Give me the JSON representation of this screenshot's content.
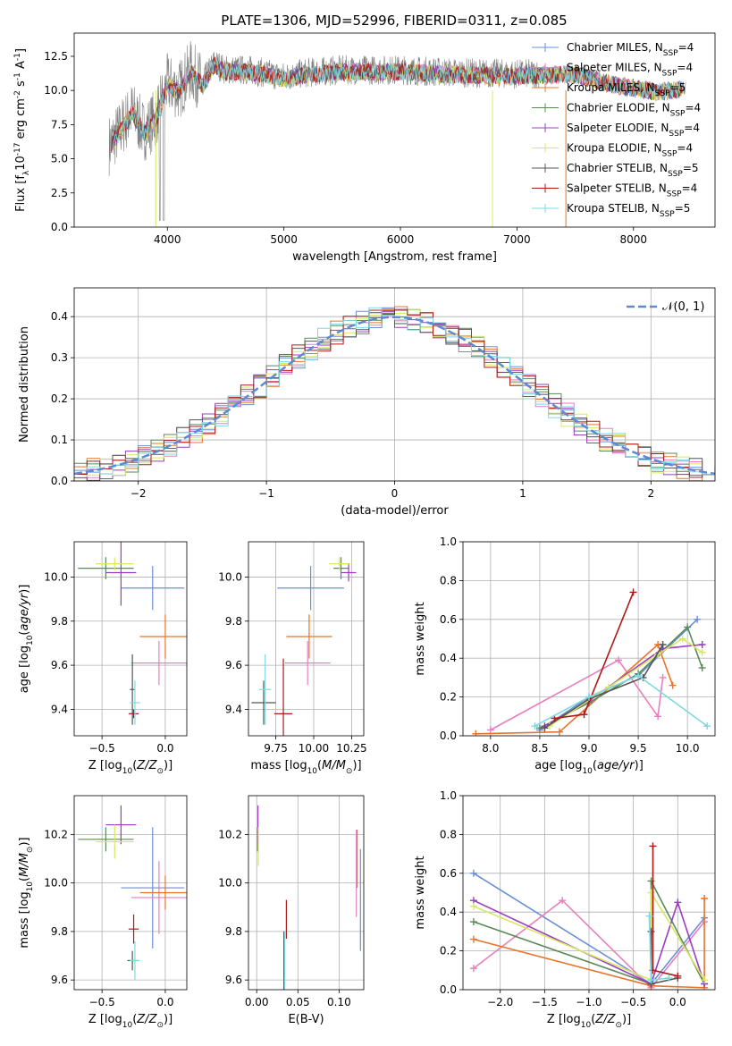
{
  "figure": {
    "title": "PLATE=1306, MJD=52996, FIBERID=0311, z=0.085"
  },
  "legend": {
    "fit_labels": [
      "Chabrier MILES, N$_{SSP}$=4",
      "Salpeter MILES, N$_{SSP}$=4",
      "Kroupa MILES, N$_{SSP}$=5",
      "Chabrier ELODIE, N$_{SSP}$=4",
      "Salpeter ELODIE, N$_{SSP}$=4",
      "Kroupa ELODIE, N$_{SSP}$=4",
      "Chabrier STELIB, N$_{SSP}$=5",
      "Salpeter STELIB, N$_{SSP}$=4",
      "Kroupa STELIB, N$_{SSP}$=5"
    ],
    "normal_label": "𝒩(0, 1)"
  },
  "colors": {
    "chabrier_miles": "#6a8fd8",
    "salpeter_miles": "#e87fbe",
    "kroupa_miles": "#e8742a",
    "chabrier_elodie": "#5a8a5a",
    "salpeter_elodie": "#9b3cc4",
    "kroupa_elodie": "#d9e860",
    "chabrier_stelib": "#555555",
    "salpeter_stelib": "#b01818",
    "kroupa_stelib": "#7fd8e0",
    "data": "#808080",
    "normal_curve": "#5b8bd6"
  },
  "chart_data": [
    {
      "id": "spectrum",
      "type": "line",
      "xlabel": "wavelength [Angstrom, rest frame]",
      "ylabel": "Flux [f$_\\lambda$10$^{-17}$ erg cm$^{-2}$ s$^{-1}$ A$^{-1}$]",
      "xlim": [
        3200,
        8700
      ],
      "ylim": [
        0,
        14.2
      ],
      "xticks": [
        4000,
        5000,
        6000,
        7000,
        8000
      ],
      "yticks": [
        0.0,
        2.5,
        5.0,
        7.5,
        10.0,
        12.5
      ],
      "ytick_labels": [
        "0.0",
        "2.5",
        "5.0",
        "7.5",
        "10.0",
        "12.5"
      ],
      "series_x": [
        3500,
        3600,
        3700,
        3800,
        3900,
        4000,
        4100,
        4200,
        4300,
        4400,
        4500,
        4700,
        5000,
        5200,
        5500,
        6000,
        6500,
        7000,
        7500,
        7800,
        8000,
        8200,
        8400
      ],
      "series_y": [
        6.0,
        7.2,
        8.5,
        7.0,
        8.0,
        10.5,
        10.0,
        11.5,
        10.5,
        12.0,
        11.5,
        11.5,
        11.0,
        11.3,
        11.5,
        11.5,
        11.3,
        11.2,
        11.3,
        10.6,
        10.3,
        10.0,
        10.2
      ]
    },
    {
      "id": "residuals",
      "type": "line",
      "xlabel": "(data-model)/error",
      "ylabel": "Normed distribution",
      "xlim": [
        -2.5,
        2.5
      ],
      "ylim": [
        0,
        0.47
      ],
      "xticks": [
        -2,
        -1,
        0,
        1,
        2
      ],
      "xtick_labels": [
        "−2",
        "−1",
        "0",
        "1",
        "2"
      ],
      "yticks": [
        0.0,
        0.1,
        0.2,
        0.3,
        0.4
      ],
      "ytick_labels": [
        "0.0",
        "0.1",
        "0.2",
        "0.3",
        "0.4"
      ],
      "grid": true,
      "normal_mean": 0,
      "normal_sigma": 1
    },
    {
      "id": "age_vs_Z",
      "type": "scatter",
      "xlabel": "Z [log$_{10}$($Z/Z_\\odot$)]",
      "ylabel": "age  [log$_{10}$($age/yr$)]",
      "xlim": [
        -0.72,
        0.17
      ],
      "ylim": [
        9.28,
        10.16
      ],
      "xticks": [
        -0.5,
        0.0
      ],
      "xtick_labels": [
        "−0.5",
        "0.0"
      ],
      "yticks": [
        9.4,
        9.6,
        9.8,
        10.0
      ],
      "ytick_labels": [
        "9.4",
        "9.6",
        "9.8",
        "10.0"
      ],
      "grid": true,
      "points": [
        {
          "x": -0.1,
          "y": 9.95,
          "xerr": 0.25,
          "yerr": 0.1
        },
        {
          "x": -0.05,
          "y": 9.61,
          "xerr": 0.22,
          "yerr": 0.1
        },
        {
          "x": 0.0,
          "y": 9.73,
          "xerr": 0.2,
          "yerr": 0.1
        },
        {
          "x": -0.47,
          "y": 10.04,
          "xerr": 0.22,
          "yerr": 0.05
        },
        {
          "x": -0.35,
          "y": 10.02,
          "xerr": 0.12,
          "yerr": 0.15
        },
        {
          "x": -0.4,
          "y": 10.06,
          "xerr": 0.15,
          "yerr": 0.03
        },
        {
          "x": -0.26,
          "y": 9.49,
          "xerr": 0.02,
          "yerr": 0.16
        },
        {
          "x": -0.25,
          "y": 9.38,
          "xerr": 0.04,
          "yerr": 0.02
        },
        {
          "x": -0.24,
          "y": 9.43,
          "xerr": 0.04,
          "yerr": 0.1
        }
      ]
    },
    {
      "id": "age_vs_mass",
      "type": "scatter",
      "xlabel": "mass [log$_{10}$($M/M_\\odot$)]",
      "ylabel": "",
      "xlim": [
        9.57,
        10.33
      ],
      "ylim": [
        9.28,
        10.16
      ],
      "xticks": [
        9.75,
        10.0,
        10.25
      ],
      "xtick_labels": [
        "9.75",
        "10.00",
        "10.25"
      ],
      "yticks": [
        9.4,
        9.6,
        9.8,
        10.0
      ],
      "ytick_labels": [
        "9.4",
        "9.6",
        "9.8",
        "10.0"
      ],
      "grid": true,
      "points": [
        {
          "x": 9.98,
          "y": 9.95,
          "xerr": 0.22,
          "yerr": 0.1
        },
        {
          "x": 9.96,
          "y": 9.61,
          "xerr": 0.15,
          "yerr": 0.1
        },
        {
          "x": 9.97,
          "y": 9.73,
          "xerr": 0.15,
          "yerr": 0.1
        },
        {
          "x": 10.18,
          "y": 10.04,
          "xerr": 0.05,
          "yerr": 0.05
        },
        {
          "x": 10.23,
          "y": 10.02,
          "xerr": 0.05,
          "yerr": 0.04
        },
        {
          "x": 10.17,
          "y": 10.06,
          "xerr": 0.07,
          "yerr": 0.03
        },
        {
          "x": 9.67,
          "y": 9.43,
          "xerr": 0.08,
          "yerr": 0.1
        },
        {
          "x": 9.8,
          "y": 9.38,
          "xerr": 0.06,
          "yerr": 0.25
        },
        {
          "x": 9.68,
          "y": 9.49,
          "xerr": 0.04,
          "yerr": 0.16
        }
      ]
    },
    {
      "id": "weight_vs_age",
      "type": "line",
      "xlabel": "age  [log$_{10}$($age/yr$)]",
      "ylabel": "mass weight",
      "xlim": [
        7.72,
        10.28
      ],
      "ylim": [
        0,
        1.0
      ],
      "xticks": [
        8.0,
        8.5,
        9.0,
        9.5,
        10.0
      ],
      "xtick_labels": [
        "8.0",
        "8.5",
        "9.0",
        "9.5",
        "10.0"
      ],
      "yticks": [
        0.0,
        0.2,
        0.4,
        0.6,
        0.8,
        1.0
      ],
      "ytick_labels": [
        "0.0",
        "0.2",
        "0.4",
        "0.6",
        "0.8",
        "1.0"
      ],
      "grid": true,
      "series": [
        {
          "x": [
            8.5,
            9.0,
            9.5,
            10.1
          ],
          "y": [
            0.03,
            0.2,
            0.31,
            0.6
          ]
        },
        {
          "x": [
            8.0,
            9.3,
            9.7,
            9.75
          ],
          "y": [
            0.03,
            0.39,
            0.1,
            0.3
          ]
        },
        {
          "x": [
            7.85,
            8.7,
            9.7,
            9.85
          ],
          "y": [
            0.01,
            0.02,
            0.47,
            0.26
          ]
        },
        {
          "x": [
            8.5,
            9.0,
            9.5,
            10.0,
            10.15
          ],
          "y": [
            0.04,
            0.17,
            0.32,
            0.56,
            0.35
          ]
        },
        {
          "x": [
            8.55,
            9.0,
            9.75,
            10.15
          ],
          "y": [
            0.05,
            0.18,
            0.45,
            0.47
          ]
        },
        {
          "x": [
            8.6,
            9.2,
            9.7,
            9.95,
            10.15
          ],
          "y": [
            0.05,
            0.25,
            0.42,
            0.5,
            0.43
          ]
        },
        {
          "x": [
            8.55,
            9.0,
            9.55,
            9.75
          ],
          "y": [
            0.04,
            0.19,
            0.3,
            0.47
          ]
        },
        {
          "x": [
            8.65,
            8.95,
            9.45
          ],
          "y": [
            0.09,
            0.11,
            0.74
          ]
        },
        {
          "x": [
            8.45,
            9.0,
            9.5,
            10.2
          ],
          "y": [
            0.05,
            0.2,
            0.31,
            0.05
          ]
        }
      ]
    },
    {
      "id": "mass_vs_Z",
      "type": "scatter",
      "xlabel": "Z [log$_{10}$($Z/Z_\\odot$)]",
      "ylabel": "mass [log$_{10}$($M/M_\\odot$)]",
      "xlim": [
        -0.72,
        0.17
      ],
      "ylim": [
        9.56,
        10.36
      ],
      "xticks": [
        -0.5,
        0.0
      ],
      "xtick_labels": [
        "−0.5",
        "0.0"
      ],
      "yticks": [
        9.6,
        9.8,
        10.0,
        10.2
      ],
      "ytick_labels": [
        "9.6",
        "9.8",
        "10.0",
        "10.2"
      ],
      "grid": true,
      "points": [
        {
          "x": -0.1,
          "y": 9.98,
          "xerr": 0.25,
          "yerr": 0.25
        },
        {
          "x": -0.05,
          "y": 9.94,
          "xerr": 0.22,
          "yerr": 0.15
        },
        {
          "x": 0.0,
          "y": 9.96,
          "xerr": 0.2,
          "yerr": 0.07
        },
        {
          "x": -0.47,
          "y": 10.18,
          "xerr": 0.22,
          "yerr": 0.05
        },
        {
          "x": -0.35,
          "y": 10.24,
          "xerr": 0.12,
          "yerr": 0.08
        },
        {
          "x": -0.4,
          "y": 10.17,
          "xerr": 0.15,
          "yerr": 0.07
        },
        {
          "x": -0.26,
          "y": 9.68,
          "xerr": 0.04,
          "yerr": 0.04
        },
        {
          "x": -0.25,
          "y": 9.81,
          "xerr": 0.04,
          "yerr": 0.06
        },
        {
          "x": -0.24,
          "y": 9.68,
          "xerr": 0.04,
          "yerr": 0.08
        }
      ]
    },
    {
      "id": "mass_vs_EBV",
      "type": "scatter",
      "xlabel": "E(B-V)",
      "ylabel": "",
      "xlim": [
        -0.01,
        0.13
      ],
      "ylim": [
        9.56,
        10.36
      ],
      "xticks": [
        0.0,
        0.05,
        0.1
      ],
      "xtick_labels": [
        "0.00",
        "0.05",
        "0.10"
      ],
      "yticks": [
        9.6,
        9.8,
        10.0,
        10.2
      ],
      "ytick_labels": [
        "9.6",
        "9.8",
        "10.0",
        "10.2"
      ],
      "grid": true,
      "points": [
        {
          "x": 0.126,
          "y": 9.93,
          "xerr": 0.0,
          "yerr": 0.21
        },
        {
          "x": 0.121,
          "y": 10.04,
          "xerr": 0.0,
          "yerr": 0.18
        },
        {
          "x": 0.122,
          "y": 10.1,
          "xerr": 0.0,
          "yerr": 0.12
        },
        {
          "x": 0.001,
          "y": 10.18,
          "xerr": 0.0,
          "yerr": 0.05
        },
        {
          "x": 0.0015,
          "y": 10.24,
          "xerr": 0.0,
          "yerr": 0.08
        },
        {
          "x": 0.002,
          "y": 10.15,
          "xerr": 0.0,
          "yerr": 0.08
        },
        {
          "x": 0.033,
          "y": 9.68,
          "xerr": 0.0,
          "yerr": 0.12
        },
        {
          "x": 0.036,
          "y": 9.85,
          "xerr": 0.0,
          "yerr": 0.08
        },
        {
          "x": 0.034,
          "y": 9.68,
          "xerr": 0.0,
          "yerr": 0.12
        }
      ]
    },
    {
      "id": "weight_vs_Z",
      "type": "line",
      "xlabel": "Z [log$_{10}$($Z/Z_\\odot$)]",
      "ylabel": "mass weight",
      "xlim": [
        -2.42,
        0.42
      ],
      "ylim": [
        0,
        1.0
      ],
      "xticks": [
        -2.0,
        -1.5,
        -1.0,
        -0.5,
        0.0
      ],
      "xtick_labels": [
        "−2.0",
        "−1.5",
        "−1.0",
        "−0.5",
        "0.0"
      ],
      "yticks": [
        0.0,
        0.2,
        0.4,
        0.6,
        0.8,
        1.0
      ],
      "ytick_labels": [
        "0.0",
        "0.2",
        "0.4",
        "0.6",
        "0.8",
        "1.0"
      ],
      "grid": true,
      "series": [
        {
          "x": [
            -2.3,
            -0.3,
            0.3
          ],
          "y": [
            0.6,
            0.03,
            0.37
          ]
        },
        {
          "x": [
            -2.3,
            -1.3,
            -0.3,
            0.3
          ],
          "y": [
            0.11,
            0.46,
            0.01,
            0.35
          ]
        },
        {
          "x": [
            -2.3,
            -0.3,
            0.3,
            0.3
          ],
          "y": [
            0.26,
            0.02,
            0.01,
            0.47
          ]
        },
        {
          "x": [
            -2.3,
            -0.3,
            -0.3,
            0.3
          ],
          "y": [
            0.35,
            0.03,
            0.56,
            0.03
          ]
        },
        {
          "x": [
            -2.3,
            -0.3,
            0.0,
            0.3
          ],
          "y": [
            0.46,
            0.03,
            0.45,
            0.03
          ]
        },
        {
          "x": [
            -2.3,
            -0.3,
            -0.3,
            0.3
          ],
          "y": [
            0.43,
            0.05,
            0.5,
            0.05
          ]
        },
        {
          "x": [
            -0.3,
            -0.3,
            0.0
          ],
          "y": [
            0.3,
            0.03,
            0.06
          ]
        },
        {
          "x": [
            -0.28,
            -0.28,
            0.0
          ],
          "y": [
            0.74,
            0.1,
            0.07
          ]
        },
        {
          "x": [
            -0.32,
            -0.3,
            -0.1
          ],
          "y": [
            0.38,
            0.05,
            0.06
          ]
        }
      ]
    }
  ]
}
